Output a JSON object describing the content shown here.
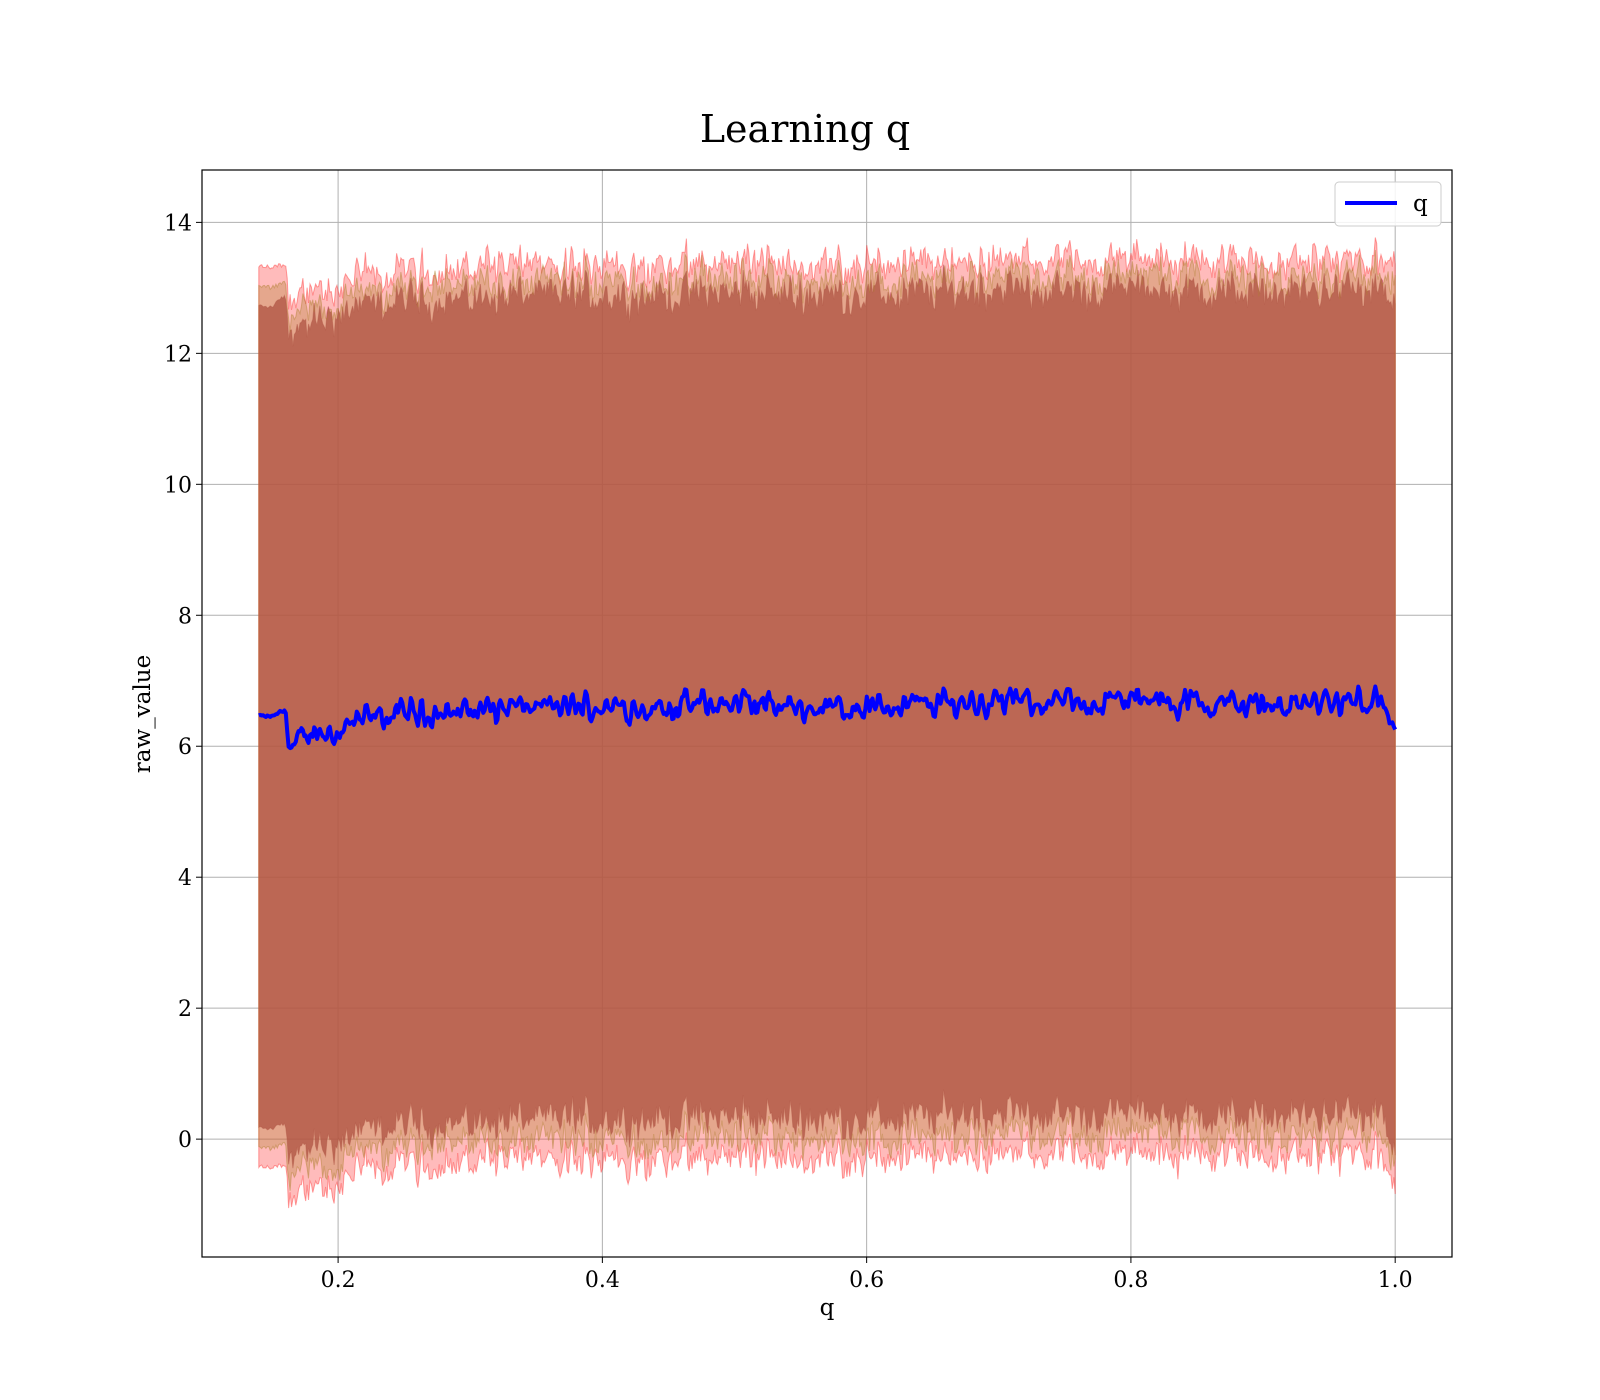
{
  "chart_data": {
    "type": "line",
    "title": "Learning q",
    "xlabel": "q",
    "ylabel": "raw_value",
    "xlim": [
      0.097,
      1.043
    ],
    "ylim": [
      -1.8,
      14.8
    ],
    "xticks": [
      0.2,
      0.4,
      0.6,
      0.8,
      1.0
    ],
    "xtick_labels": [
      "0.2",
      "0.4",
      "0.6",
      "0.8",
      "1.0"
    ],
    "yticks": [
      0,
      2,
      4,
      6,
      8,
      10,
      12,
      14
    ],
    "ytick_labels": [
      "0",
      "2",
      "4",
      "6",
      "8",
      "10",
      "12",
      "14"
    ],
    "grid": true,
    "legend": {
      "placement": "top-right",
      "entries": [
        "q"
      ]
    },
    "x_range": [
      0.14,
      1.0
    ],
    "series": [
      {
        "name": "q",
        "color": "#0000ff",
        "x": [
          0.14,
          0.15,
          0.16,
          0.165,
          0.18,
          0.2,
          0.22,
          0.25,
          0.3,
          0.35,
          0.4,
          0.45,
          0.5,
          0.55,
          0.6,
          0.65,
          0.7,
          0.75,
          0.8,
          0.85,
          0.9,
          0.95,
          0.99,
          1.0
        ],
        "values": [
          6.45,
          6.45,
          6.55,
          5.95,
          6.2,
          6.25,
          6.4,
          6.5,
          6.55,
          6.6,
          6.6,
          6.6,
          6.65,
          6.6,
          6.6,
          6.65,
          6.7,
          6.65,
          6.7,
          6.65,
          6.65,
          6.65,
          6.7,
          6.1
        ]
      }
    ],
    "bands": [
      {
        "color": "#8b4a5e",
        "upper": [
          12.7,
          12.7,
          12.9,
          12.2,
          12.5,
          12.6,
          12.7,
          12.8,
          12.85,
          12.9,
          12.9,
          12.9,
          12.95,
          12.9,
          12.9,
          12.95,
          13.0,
          12.95,
          13.0,
          12.95,
          12.95,
          12.95,
          13.0,
          12.6
        ],
        "lower": [
          0.15,
          0.15,
          0.25,
          -0.35,
          -0.1,
          -0.05,
          0.1,
          0.2,
          0.25,
          0.3,
          0.3,
          0.3,
          0.35,
          0.3,
          0.3,
          0.35,
          0.4,
          0.35,
          0.4,
          0.35,
          0.35,
          0.35,
          0.4,
          -0.4
        ]
      },
      {
        "color": "#ff3030",
        "upper": [
          13.3,
          13.3,
          13.35,
          12.7,
          12.95,
          13.05,
          13.15,
          13.25,
          13.3,
          13.35,
          13.35,
          13.35,
          13.4,
          13.35,
          13.35,
          13.4,
          13.45,
          13.4,
          13.45,
          13.4,
          13.4,
          13.4,
          13.45,
          13.3
        ],
        "lower": [
          -0.45,
          -0.45,
          -0.4,
          -1.0,
          -0.75,
          -0.65,
          -0.5,
          -0.4,
          -0.35,
          -0.3,
          -0.3,
          -0.3,
          -0.25,
          -0.3,
          -0.3,
          -0.25,
          -0.2,
          -0.25,
          -0.2,
          -0.25,
          -0.25,
          -0.25,
          -0.2,
          -0.9
        ]
      },
      {
        "color": "#b08030",
        "upper": [
          13.0,
          13.0,
          13.1,
          12.45,
          12.7,
          12.8,
          12.9,
          13.0,
          13.05,
          13.1,
          13.1,
          13.1,
          13.15,
          13.1,
          13.1,
          13.15,
          13.2,
          13.15,
          13.2,
          13.15,
          13.15,
          13.15,
          13.2,
          12.9
        ],
        "lower": [
          -0.15,
          -0.15,
          -0.05,
          -0.65,
          -0.4,
          -0.35,
          -0.2,
          -0.1,
          -0.05,
          0.0,
          0.0,
          0.0,
          0.05,
          0.0,
          0.0,
          0.05,
          0.1,
          0.05,
          0.1,
          0.05,
          0.05,
          0.05,
          0.1,
          -0.6
        ]
      }
    ]
  }
}
